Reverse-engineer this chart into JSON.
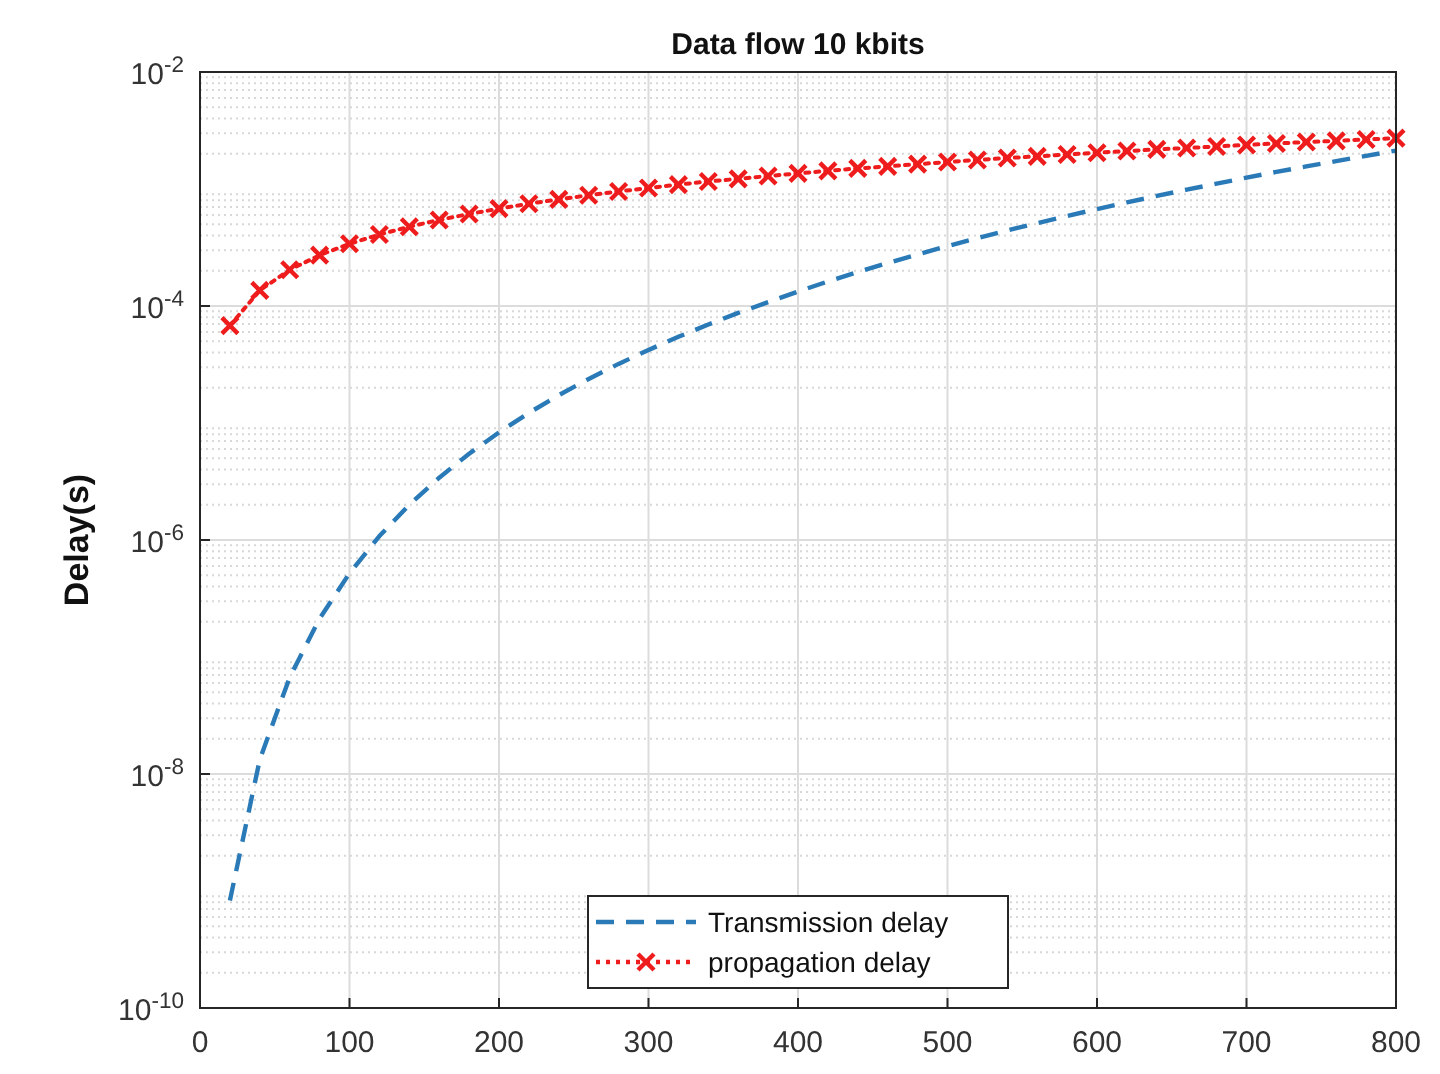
{
  "chart_data": {
    "type": "line",
    "title": "Data flow 10 kbits",
    "ylabel": "Delay(s)",
    "x": [
      20,
      40,
      60,
      80,
      100,
      120,
      140,
      160,
      180,
      200,
      220,
      240,
      260,
      280,
      300,
      320,
      340,
      360,
      380,
      400,
      420,
      440,
      460,
      480,
      500,
      520,
      540,
      560,
      580,
      600,
      620,
      640,
      660,
      680,
      700,
      720,
      740,
      760,
      780,
      800
    ],
    "series": [
      {
        "name": "Transmission delay",
        "color": "#2a7ab8",
        "line_style": "dashed",
        "marker": "none",
        "values": [
          8.3e-10,
          1.33e-08,
          6.7e-08,
          2.13e-07,
          5.2e-07,
          1.08e-06,
          2e-06,
          3.41e-06,
          5.46e-06,
          8.32e-06,
          1.22e-05,
          1.73e-05,
          2.38e-05,
          3.2e-05,
          4.21e-05,
          5.45e-05,
          6.95e-05,
          8.73e-05,
          0.000108,
          0.000133,
          0.000162,
          0.000195,
          0.000233,
          0.000276,
          0.000325,
          0.00038,
          0.000442,
          0.000511,
          0.000588,
          0.000674,
          0.000768,
          0.000872,
          0.000987,
          0.00111,
          0.00125,
          0.0014,
          0.00156,
          0.00173,
          0.00192,
          0.00213
        ]
      },
      {
        "name": "propagation delay",
        "color": "#ee1c1c",
        "line_style": "dotted",
        "marker": "cross",
        "values": [
          6.8e-05,
          0.000136,
          0.000204,
          0.000272,
          0.00034,
          0.000408,
          0.000476,
          0.000544,
          0.000612,
          0.00068,
          0.000748,
          0.000816,
          0.000884,
          0.000952,
          0.00102,
          0.00109,
          0.00116,
          0.00122,
          0.00129,
          0.00136,
          0.00143,
          0.0015,
          0.00156,
          0.00163,
          0.0017,
          0.00177,
          0.00184,
          0.0019,
          0.00197,
          0.00204,
          0.00211,
          0.00218,
          0.00224,
          0.00231,
          0.00238,
          0.00245,
          0.00252,
          0.00258,
          0.00265,
          0.00272
        ]
      }
    ],
    "xlim": [
      0,
      800
    ],
    "xticks": [
      0,
      100,
      200,
      300,
      400,
      500,
      600,
      700,
      800
    ],
    "ylim": [
      1e-10,
      0.01
    ],
    "yticks": [
      {
        "value": 1e-10,
        "label": "10$^{-10}$"
      },
      {
        "value": 1e-08,
        "label": "10$^{-8}$"
      },
      {
        "value": 1e-06,
        "label": "10$^{-6}$"
      },
      {
        "value": 0.0001,
        "label": "10$^{-4}$"
      },
      {
        "value": 0.01,
        "label": "10$^{-2}$"
      }
    ],
    "log": "y",
    "grid": true,
    "legend": "bottom"
  }
}
